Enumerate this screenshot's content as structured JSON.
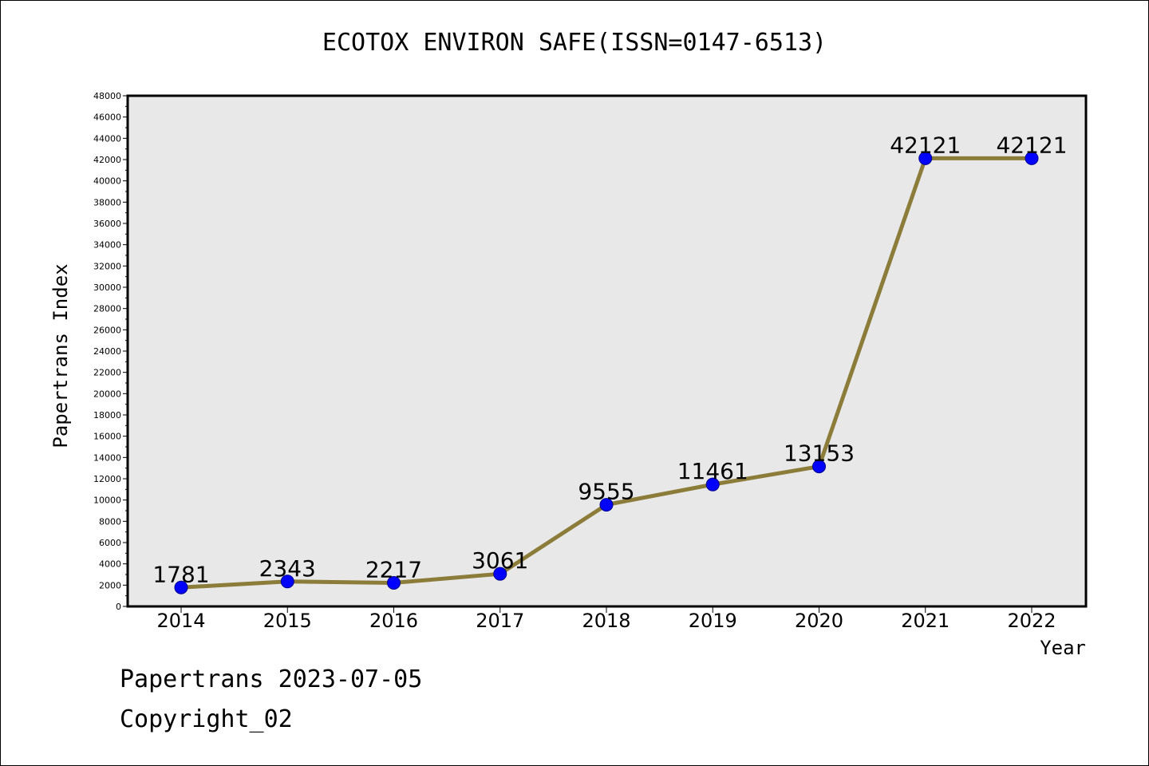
{
  "chart_data": {
    "type": "line",
    "title": "ECOTOX ENVIRON SAFE(ISSN=0147-6513)",
    "xlabel": "Year",
    "ylabel": "Papertrans Index",
    "categories": [
      "2014",
      "2015",
      "2016",
      "2017",
      "2018",
      "2019",
      "2020",
      "2021",
      "2022"
    ],
    "values": [
      1781,
      2343,
      2217,
      3061,
      9555,
      11461,
      13153,
      42121,
      42121
    ],
    "point_labels": [
      "1781",
      "2343",
      "2217",
      "3061",
      "9555",
      "11461",
      "13153",
      "42121",
      "42121"
    ],
    "ylim": [
      0,
      48000
    ],
    "y_ticks": [
      "0",
      "2000",
      "4000",
      "6000",
      "8000",
      "10000",
      "12000",
      "14000",
      "16000",
      "18000",
      "20000",
      "22000",
      "24000",
      "26000",
      "28000",
      "30000",
      "32000",
      "34000",
      "36000",
      "38000",
      "40000",
      "42000",
      "44000",
      "46000",
      "48000"
    ],
    "grid": false,
    "colors": {
      "line": "#8c7c3a",
      "marker": "#0000ff",
      "plot_background": "#e8e8e8"
    }
  },
  "footer": {
    "date_text": "Papertrans 2023-07-05",
    "copyright_text": "Copyright_02"
  }
}
